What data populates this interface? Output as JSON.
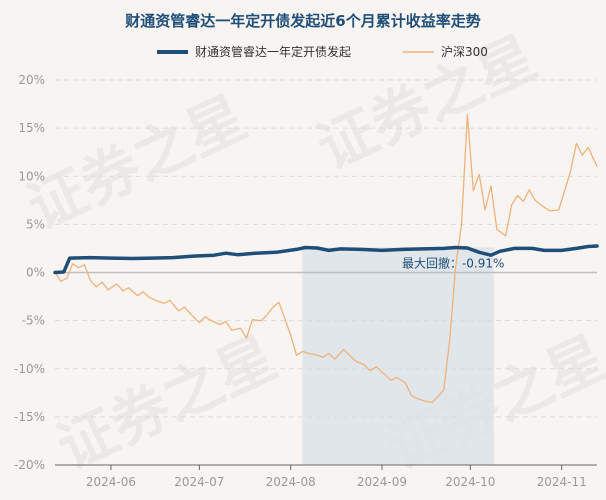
{
  "chart_data": {
    "type": "line",
    "title": "财通资管睿达一年定开债发起近6个月累计收益率走势",
    "legend": {
      "placement": "top-center",
      "entries": [
        {
          "name": "财通资管睿达一年定开债发起",
          "color": "#1f4e79"
        },
        {
          "name": "沪深300",
          "color": "#f0b27a"
        }
      ]
    },
    "watermark": "证券之星",
    "ylim": [
      -20,
      20
    ],
    "y_ticks": [
      -20,
      -15,
      -10,
      -5,
      0,
      5,
      10,
      15,
      20
    ],
    "y_tick_labels": [
      "-20%",
      "-15%",
      "-10%",
      "-5%",
      "0%",
      "5%",
      "10%",
      "15%",
      "20%"
    ],
    "x_ticks": [
      "2024-06-01",
      "2024-07-01",
      "2024-08-01",
      "2024-09-01",
      "2024-10-01",
      "2024-11-01"
    ],
    "x_tick_labels": [
      "2024-06",
      "2024-07",
      "2024-08",
      "2024-09",
      "2024-10",
      "2024-11"
    ],
    "x_range": [
      "2024-05-13",
      "2024-11-13"
    ],
    "grid": {
      "y": true,
      "x": false
    },
    "drawdown": {
      "start": "2024-08-05",
      "end": "2024-10-09",
      "label": "最大回撤：-0.91%",
      "color": "#dde3ea"
    },
    "series": [
      {
        "name": "财通资管睿达一年定开债发起",
        "color": "#1f4e79",
        "points": [
          [
            "2024-05-13",
            0.0
          ],
          [
            "2024-05-16",
            0.05
          ],
          [
            "2024-05-18",
            1.5
          ],
          [
            "2024-05-25",
            1.55
          ],
          [
            "2024-06-01",
            1.5
          ],
          [
            "2024-06-08",
            1.45
          ],
          [
            "2024-06-15",
            1.5
          ],
          [
            "2024-06-22",
            1.55
          ],
          [
            "2024-06-29",
            1.7
          ],
          [
            "2024-07-06",
            1.8
          ],
          [
            "2024-07-10",
            2.0
          ],
          [
            "2024-07-14",
            1.85
          ],
          [
            "2024-07-20",
            2.0
          ],
          [
            "2024-07-27",
            2.1
          ],
          [
            "2024-08-03",
            2.4
          ],
          [
            "2024-08-06",
            2.6
          ],
          [
            "2024-08-10",
            2.55
          ],
          [
            "2024-08-14",
            2.3
          ],
          [
            "2024-08-18",
            2.45
          ],
          [
            "2024-08-25",
            2.4
          ],
          [
            "2024-09-01",
            2.3
          ],
          [
            "2024-09-08",
            2.4
          ],
          [
            "2024-09-15",
            2.45
          ],
          [
            "2024-09-22",
            2.5
          ],
          [
            "2024-09-26",
            2.6
          ],
          [
            "2024-09-30",
            2.55
          ],
          [
            "2024-10-04",
            2.1
          ],
          [
            "2024-10-08",
            1.8
          ],
          [
            "2024-10-11",
            2.2
          ],
          [
            "2024-10-16",
            2.5
          ],
          [
            "2024-10-22",
            2.5
          ],
          [
            "2024-10-26",
            2.3
          ],
          [
            "2024-11-01",
            2.3
          ],
          [
            "2024-11-06",
            2.5
          ],
          [
            "2024-11-10",
            2.7
          ],
          [
            "2024-11-13",
            2.75
          ]
        ]
      },
      {
        "name": "沪深300",
        "color": "#f0b27a",
        "points": [
          [
            "2024-05-13",
            0.0
          ],
          [
            "2024-05-15",
            -0.9
          ],
          [
            "2024-05-17",
            -0.6
          ],
          [
            "2024-05-19",
            0.9
          ],
          [
            "2024-05-21",
            0.5
          ],
          [
            "2024-05-23",
            0.8
          ],
          [
            "2024-05-25",
            -0.8
          ],
          [
            "2024-05-27",
            -1.5
          ],
          [
            "2024-05-29",
            -1.0
          ],
          [
            "2024-05-31",
            -1.8
          ],
          [
            "2024-06-03",
            -1.2
          ],
          [
            "2024-06-05",
            -1.9
          ],
          [
            "2024-06-07",
            -1.6
          ],
          [
            "2024-06-10",
            -2.4
          ],
          [
            "2024-06-12",
            -2.0
          ],
          [
            "2024-06-14",
            -2.6
          ],
          [
            "2024-06-17",
            -3.0
          ],
          [
            "2024-06-19",
            -3.2
          ],
          [
            "2024-06-21",
            -2.9
          ],
          [
            "2024-06-24",
            -4.0
          ],
          [
            "2024-06-26",
            -3.6
          ],
          [
            "2024-06-28",
            -4.3
          ],
          [
            "2024-07-01",
            -5.2
          ],
          [
            "2024-07-03",
            -4.6
          ],
          [
            "2024-07-05",
            -5.0
          ],
          [
            "2024-07-08",
            -5.4
          ],
          [
            "2024-07-10",
            -5.1
          ],
          [
            "2024-07-12",
            -6.0
          ],
          [
            "2024-07-15",
            -5.8
          ],
          [
            "2024-07-17",
            -6.8
          ],
          [
            "2024-07-19",
            -4.9
          ],
          [
            "2024-07-22",
            -5.0
          ],
          [
            "2024-07-24",
            -4.4
          ],
          [
            "2024-07-26",
            -3.6
          ],
          [
            "2024-07-28",
            -3.1
          ],
          [
            "2024-07-30",
            -4.8
          ],
          [
            "2024-08-01",
            -6.5
          ],
          [
            "2024-08-03",
            -8.6
          ],
          [
            "2024-08-05",
            -8.2
          ],
          [
            "2024-08-07",
            -8.4
          ],
          [
            "2024-08-09",
            -8.5
          ],
          [
            "2024-08-12",
            -8.8
          ],
          [
            "2024-08-14",
            -8.4
          ],
          [
            "2024-08-16",
            -9.0
          ],
          [
            "2024-08-19",
            -8.0
          ],
          [
            "2024-08-21",
            -8.6
          ],
          [
            "2024-08-23",
            -9.2
          ],
          [
            "2024-08-26",
            -9.6
          ],
          [
            "2024-08-28",
            -10.2
          ],
          [
            "2024-08-30",
            -9.8
          ],
          [
            "2024-09-02",
            -10.6
          ],
          [
            "2024-09-04",
            -11.2
          ],
          [
            "2024-09-06",
            -10.9
          ],
          [
            "2024-09-09",
            -11.5
          ],
          [
            "2024-09-11",
            -12.8
          ],
          [
            "2024-09-13",
            -13.1
          ],
          [
            "2024-09-16",
            -13.4
          ],
          [
            "2024-09-18",
            -13.5
          ],
          [
            "2024-09-20",
            -12.9
          ],
          [
            "2024-09-22",
            -12.2
          ],
          [
            "2024-09-24",
            -7.0
          ],
          [
            "2024-09-26",
            0.5
          ],
          [
            "2024-09-28",
            5.0
          ],
          [
            "2024-09-30",
            16.4
          ],
          [
            "2024-10-02",
            8.5
          ],
          [
            "2024-10-04",
            10.2
          ],
          [
            "2024-10-06",
            6.5
          ],
          [
            "2024-10-08",
            9.0
          ],
          [
            "2024-10-10",
            4.5
          ],
          [
            "2024-10-13",
            3.8
          ],
          [
            "2024-10-15",
            7.0
          ],
          [
            "2024-10-17",
            8.0
          ],
          [
            "2024-10-19",
            7.4
          ],
          [
            "2024-10-21",
            8.6
          ],
          [
            "2024-10-23",
            7.5
          ],
          [
            "2024-10-25",
            7.0
          ],
          [
            "2024-10-28",
            6.4
          ],
          [
            "2024-10-31",
            6.5
          ],
          [
            "2024-11-02",
            8.5
          ],
          [
            "2024-11-04",
            10.5
          ],
          [
            "2024-11-06",
            13.4
          ],
          [
            "2024-11-08",
            12.2
          ],
          [
            "2024-11-10",
            13.0
          ],
          [
            "2024-11-13",
            11.0
          ]
        ]
      }
    ]
  }
}
